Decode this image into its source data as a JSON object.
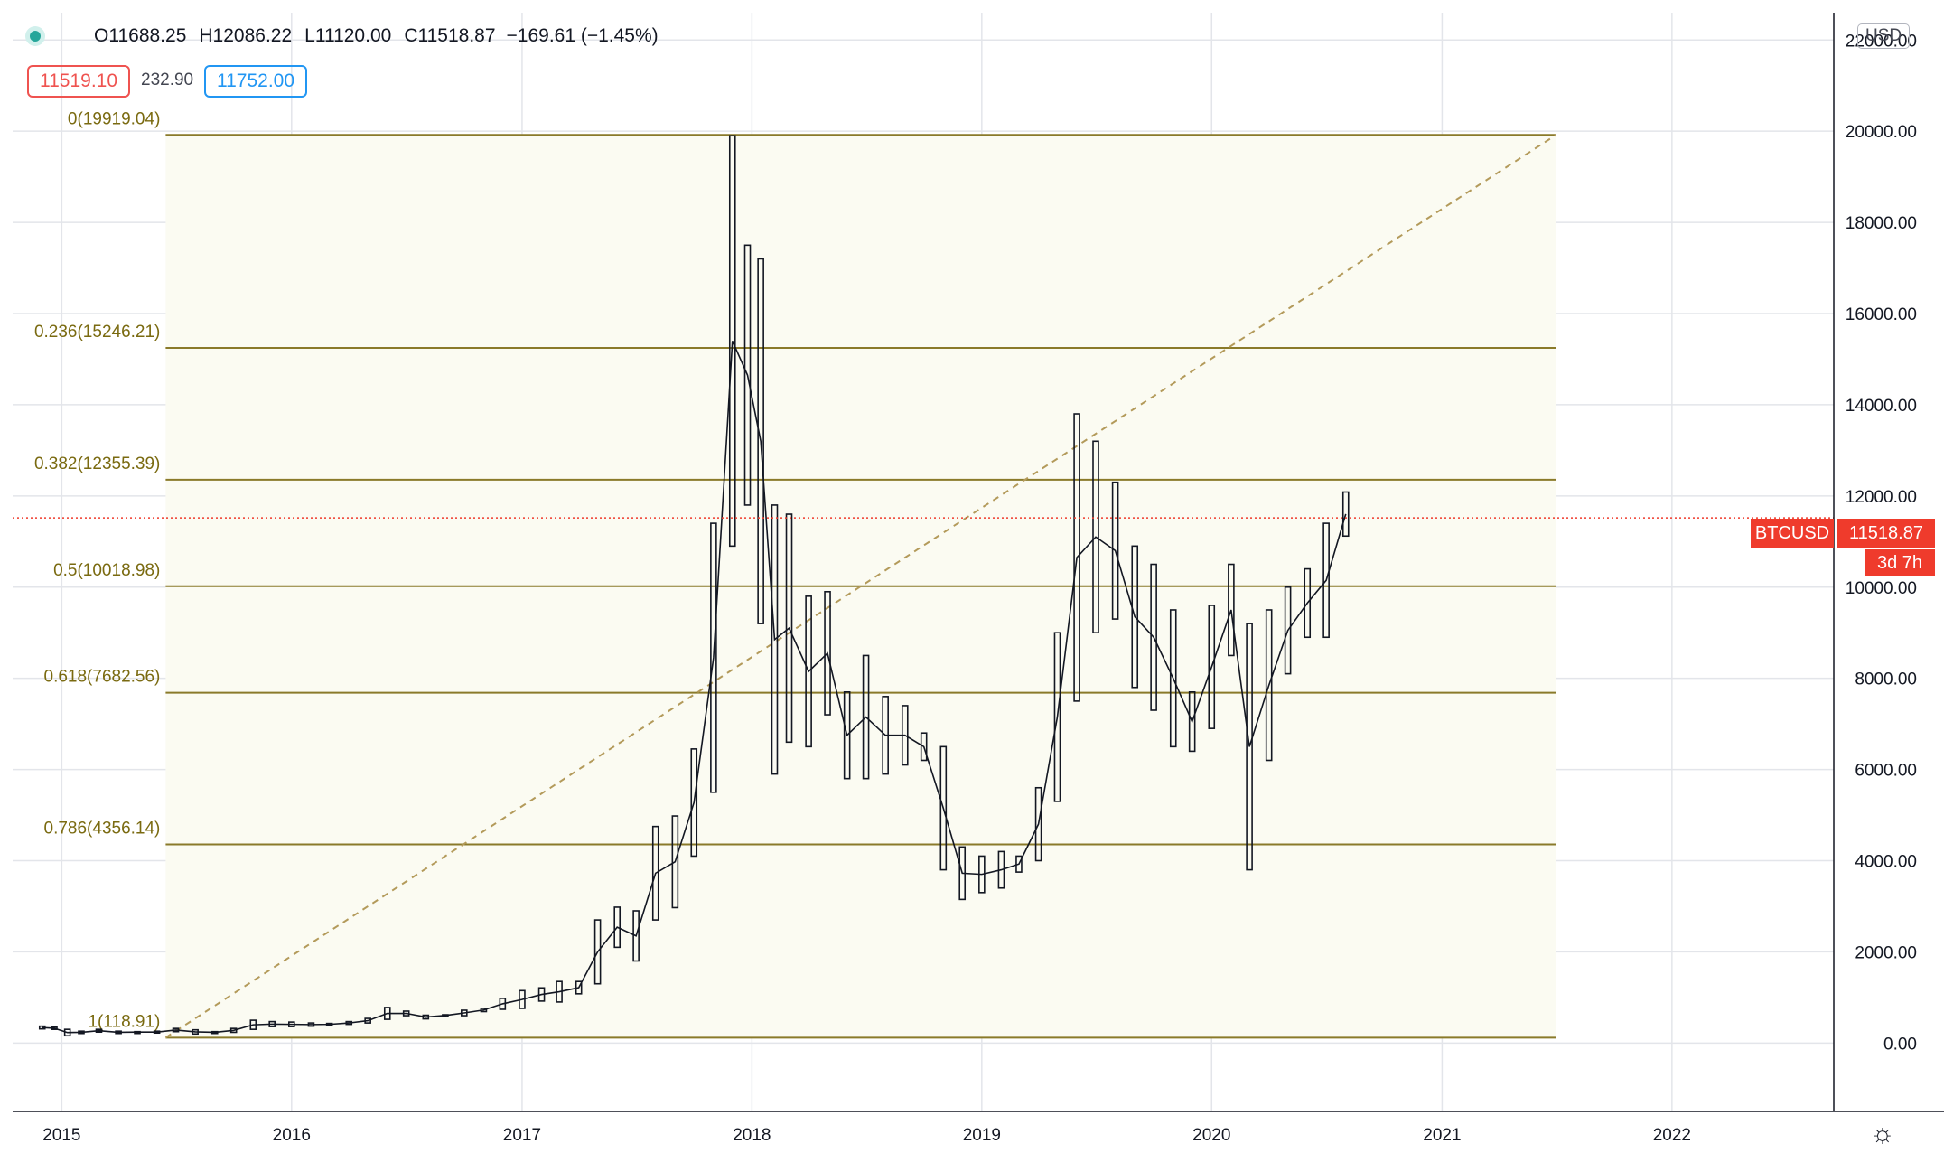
{
  "legend": {
    "open_label": "O",
    "open": "11688.25",
    "high_label": "H",
    "high": "12086.22",
    "low_label": "L",
    "low": "11120.00",
    "close_label": "C",
    "close": "11518.87",
    "change": "−169.61 (−1.45%)"
  },
  "quote": {
    "bid": "11519.10",
    "spread": "232.90",
    "ask": "11752.00"
  },
  "axis_unit": "USD",
  "symbol": "BTCUSD",
  "last_price": "11518.87",
  "bar_countdown": "3d 7h",
  "colors": {
    "fib_line": "#8a7a2a",
    "fib_label": "#7a6a10",
    "fib_fill": "#fbfbf2",
    "trend_line": "#b39a5a",
    "price_line": "#ef3b2c",
    "candle": "#131722",
    "grid": "#e3e5ea"
  },
  "chart_data": {
    "type": "line",
    "title": "",
    "xlabel": "",
    "ylabel": "",
    "x_ticks": [
      "2015",
      "2016",
      "2017",
      "2018",
      "2019",
      "2020",
      "2021",
      "2022"
    ],
    "y_ticks": [
      "0.00",
      "2000.00",
      "4000.00",
      "6000.00",
      "8000.00",
      "10000.00",
      "12000.00",
      "14000.00",
      "16000.00",
      "18000.00",
      "20000.00",
      "22000.00"
    ],
    "ylim": [
      -1500,
      22600
    ],
    "xlim": [
      "2014-10-15",
      "2022-09-15"
    ],
    "grid": true,
    "fib_levels": [
      {
        "label": "0(19919.04)",
        "ratio": 0,
        "value": 19919.04
      },
      {
        "label": "0.236(15246.21)",
        "ratio": 0.236,
        "value": 15246.21
      },
      {
        "label": "0.382(12355.39)",
        "ratio": 0.382,
        "value": 12355.39
      },
      {
        "label": "0.5(10018.98)",
        "ratio": 0.5,
        "value": 10018.98
      },
      {
        "label": "0.618(7682.56)",
        "ratio": 0.618,
        "value": 7682.56
      },
      {
        "label": "0.786(4356.14)",
        "ratio": 0.786,
        "value": 4356.14
      },
      {
        "label": "1(118.91)",
        "ratio": 1,
        "value": 118.91
      }
    ],
    "fib_range": {
      "start": "2015-06-15",
      "end": "2021-07-01"
    },
    "trend_line": [
      {
        "x": "2015-06-15",
        "y": 118.91
      },
      {
        "x": "2021-07-01",
        "y": 19919.04
      }
    ],
    "last_price": 11518.87,
    "series": [
      {
        "values": [
          [
            "2014-12-01",
            370,
            310
          ],
          [
            "2014-12-20",
            350,
            300
          ],
          [
            "2015-01-10",
            300,
            160
          ],
          [
            "2015-02-01",
            260,
            210
          ],
          [
            "2015-03-01",
            300,
            240
          ],
          [
            "2015-04-01",
            260,
            210
          ],
          [
            "2015-05-01",
            250,
            230
          ],
          [
            "2015-06-01",
            260,
            220
          ],
          [
            "2015-07-01",
            320,
            250
          ],
          [
            "2015-08-01",
            290,
            200
          ],
          [
            "2015-09-01",
            250,
            220
          ],
          [
            "2015-10-01",
            320,
            235
          ],
          [
            "2015-11-01",
            500,
            300
          ],
          [
            "2015-12-01",
            470,
            360
          ],
          [
            "2016-01-01",
            460,
            360
          ],
          [
            "2016-02-01",
            440,
            370
          ],
          [
            "2016-03-01",
            430,
            390
          ],
          [
            "2016-04-01",
            470,
            410
          ],
          [
            "2016-05-01",
            540,
            440
          ],
          [
            "2016-06-01",
            780,
            520
          ],
          [
            "2016-07-01",
            700,
            600
          ],
          [
            "2016-08-01",
            610,
            530
          ],
          [
            "2016-09-01",
            620,
            590
          ],
          [
            "2016-10-01",
            720,
            600
          ],
          [
            "2016-11-01",
            760,
            690
          ],
          [
            "2016-12-01",
            980,
            740
          ],
          [
            "2017-01-01",
            1150,
            760
          ],
          [
            "2017-02-01",
            1210,
            920
          ],
          [
            "2017-03-01",
            1350,
            900
          ],
          [
            "2017-04-01",
            1350,
            1080
          ],
          [
            "2017-05-01",
            2700,
            1300
          ],
          [
            "2017-06-01",
            2980,
            2100
          ],
          [
            "2017-07-01",
            2900,
            1800
          ],
          [
            "2017-08-01",
            4750,
            2700
          ],
          [
            "2017-09-01",
            4980,
            2970
          ],
          [
            "2017-10-01",
            6450,
            4100
          ],
          [
            "2017-11-01",
            11400,
            5500
          ],
          [
            "2017-12-01",
            19900,
            10900
          ],
          [
            "2017-12-25",
            17500,
            11800
          ],
          [
            "2018-01-15",
            17200,
            9200
          ],
          [
            "2018-02-06",
            11800,
            5900
          ],
          [
            "2018-03-01",
            11600,
            6600
          ],
          [
            "2018-04-01",
            9800,
            6500
          ],
          [
            "2018-05-01",
            9900,
            7200
          ],
          [
            "2018-06-01",
            7700,
            5800
          ],
          [
            "2018-07-01",
            8500,
            5800
          ],
          [
            "2018-08-01",
            7600,
            5900
          ],
          [
            "2018-09-01",
            7400,
            6100
          ],
          [
            "2018-10-01",
            6800,
            6200
          ],
          [
            "2018-11-01",
            6500,
            3800
          ],
          [
            "2018-12-01",
            4300,
            3150
          ],
          [
            "2019-01-01",
            4100,
            3300
          ],
          [
            "2019-02-01",
            4200,
            3400
          ],
          [
            "2019-03-01",
            4100,
            3750
          ],
          [
            "2019-04-01",
            5600,
            4000
          ],
          [
            "2019-05-01",
            9000,
            5300
          ],
          [
            "2019-06-01",
            13800,
            7500
          ],
          [
            "2019-07-01",
            13200,
            9000
          ],
          [
            "2019-08-01",
            12300,
            9300
          ],
          [
            "2019-09-01",
            10900,
            7800
          ],
          [
            "2019-10-01",
            10500,
            7300
          ],
          [
            "2019-11-01",
            9500,
            6500
          ],
          [
            "2019-12-01",
            7700,
            6400
          ],
          [
            "2020-01-01",
            9600,
            6900
          ],
          [
            "2020-02-01",
            10500,
            8500
          ],
          [
            "2020-03-01",
            9200,
            3800
          ],
          [
            "2020-04-01",
            9500,
            6200
          ],
          [
            "2020-05-01",
            10000,
            8100
          ],
          [
            "2020-06-01",
            10400,
            8900
          ],
          [
            "2020-07-01",
            11400,
            8900
          ],
          [
            "2020-08-01",
            12086,
            11120
          ]
        ]
      }
    ]
  }
}
